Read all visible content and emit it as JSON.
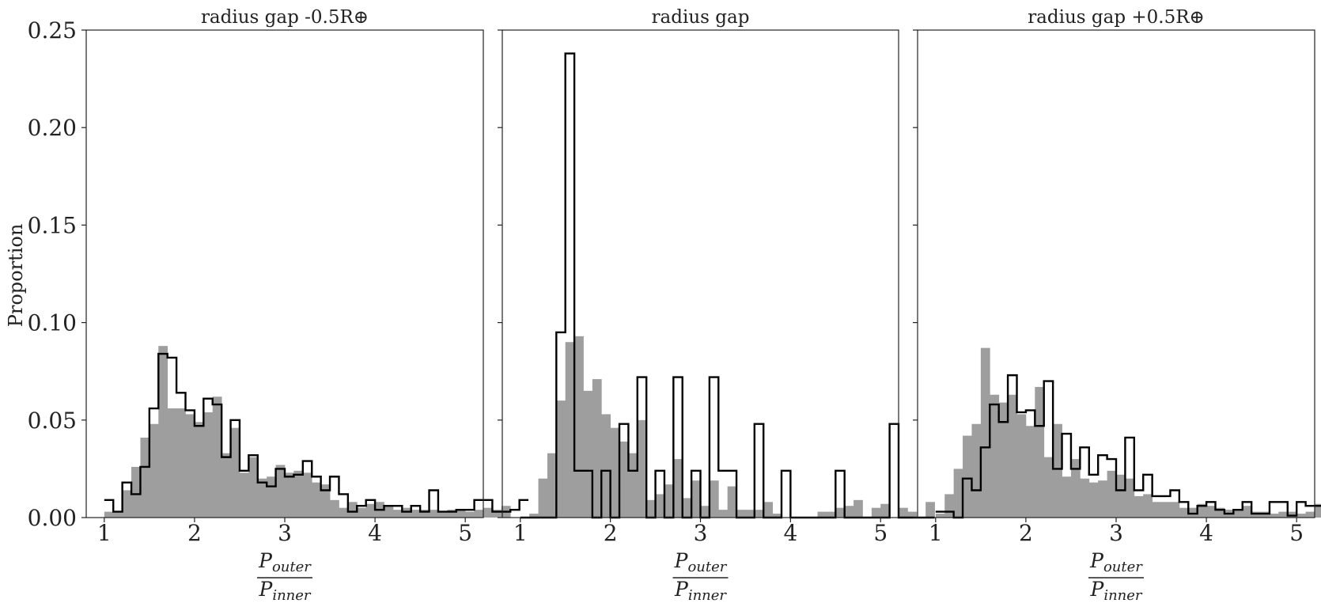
{
  "figure": {
    "ylabel": "Proportion",
    "xlabel_numerator": "P",
    "xlabel_numerator_sub": "outer",
    "xlabel_denominator": "P",
    "xlabel_denominator_sub": "inner"
  },
  "chart_data": [
    {
      "type": "histogram",
      "title": "radius gap -0.5R⊕",
      "xlim": [
        0.8,
        5.2
      ],
      "ylim": [
        0,
        0.25
      ],
      "x_ticks": [
        "1",
        "2",
        "3",
        "4",
        "5"
      ],
      "y_ticks": [
        "0.00",
        "0.05",
        "0.10",
        "0.15",
        "0.20",
        "0.25"
      ],
      "bin_start": 1.0,
      "bin_width": 0.1,
      "series": [
        {
          "style": "filled",
          "color": "#9e9e9e",
          "values": [
            0.003,
            0.003,
            0.014,
            0.026,
            0.041,
            0.048,
            0.088,
            0.056,
            0.056,
            0.053,
            0.049,
            0.054,
            0.062,
            0.033,
            0.046,
            0.023,
            0.031,
            0.02,
            0.021,
            0.027,
            0.023,
            0.024,
            0.023,
            0.018,
            0.017,
            0.009,
            0.005,
            0.008,
            0.005,
            0.007,
            0.008,
            0.006,
            0.004,
            0.005,
            0.004,
            0.004,
            0.004,
            0.003,
            0.004,
            0.004,
            0.003,
            0.004,
            0.005,
            0.004,
            0.006
          ]
        },
        {
          "style": "step",
          "color": "#000000",
          "values": [
            0.009,
            0.003,
            0.018,
            0.012,
            0.026,
            0.056,
            0.084,
            0.082,
            0.064,
            0.055,
            0.047,
            0.061,
            0.058,
            0.031,
            0.05,
            0.024,
            0.032,
            0.018,
            0.016,
            0.025,
            0.021,
            0.022,
            0.029,
            0.021,
            0.014,
            0.021,
            0.012,
            0.003,
            0.006,
            0.009,
            0.004,
            0.006,
            0.006,
            0.003,
            0.006,
            0.003,
            0.014,
            0.003,
            0.003,
            0.004,
            0.004,
            0.009,
            0.009,
            0.003,
            0.003,
            0.004,
            0.009
          ]
        }
      ]
    },
    {
      "type": "histogram",
      "title": "radius gap",
      "xlim": [
        0.8,
        5.2
      ],
      "ylim": [
        0,
        0.25
      ],
      "x_ticks": [
        "1",
        "2",
        "3",
        "4",
        "5"
      ],
      "y_ticks": [],
      "bin_start": 1.0,
      "bin_width": 0.1,
      "series": [
        {
          "style": "filled",
          "color": "#9e9e9e",
          "values": [
            0.0,
            0.002,
            0.02,
            0.033,
            0.06,
            0.09,
            0.093,
            0.065,
            0.071,
            0.053,
            0.046,
            0.039,
            0.033,
            0.05,
            0.009,
            0.012,
            0.017,
            0.03,
            0.01,
            0.019,
            0.006,
            0.019,
            0.004,
            0.016,
            0.004,
            0.004,
            0.004,
            0.008,
            0.002,
            0.0,
            0.0,
            0.0,
            0.0,
            0.003,
            0.003,
            0.005,
            0.006,
            0.009,
            0.0,
            0.005,
            0.007,
            0.0,
            0.005,
            0.003,
            0.0,
            0.008
          ]
        },
        {
          "style": "step",
          "color": "#000000",
          "values": [
            0.0,
            0.0,
            0.0,
            0.0,
            0.095,
            0.238,
            0.024,
            0.024,
            0.0,
            0.024,
            0.0,
            0.048,
            0.024,
            0.072,
            0.0,
            0.024,
            0.0,
            0.072,
            0.0,
            0.024,
            0.0,
            0.072,
            0.024,
            0.024,
            0.0,
            0.0,
            0.048,
            0.0,
            0.0,
            0.024,
            0.0,
            0.0,
            0.0,
            0.0,
            0.0,
            0.024,
            0.0,
            0.0,
            0.0,
            0.0,
            0.0,
            0.048,
            0.0,
            0.0,
            0.0,
            0.0
          ]
        }
      ]
    },
    {
      "type": "histogram",
      "title": "radius gap +0.5R⊕",
      "xlim": [
        0.8,
        5.2
      ],
      "ylim": [
        0,
        0.25
      ],
      "x_ticks": [
        "1",
        "2",
        "3",
        "4",
        "5"
      ],
      "y_ticks": [],
      "bin_start": 1.0,
      "bin_width": 0.1,
      "series": [
        {
          "style": "filled",
          "color": "#9e9e9e",
          "values": [
            0.002,
            0.012,
            0.025,
            0.042,
            0.048,
            0.087,
            0.063,
            0.059,
            0.063,
            0.053,
            0.047,
            0.067,
            0.031,
            0.048,
            0.021,
            0.03,
            0.02,
            0.018,
            0.019,
            0.024,
            0.022,
            0.02,
            0.011,
            0.012,
            0.008,
            0.008,
            0.008,
            0.005,
            0.005,
            0.007,
            0.006,
            0.005,
            0.004,
            0.004,
            0.006,
            0.003,
            0.003,
            0.002,
            0.003,
            0.003,
            0.002,
            0.003,
            0.007,
            0.004,
            0.004,
            0.003,
            0.007
          ]
        },
        {
          "style": "step",
          "color": "#000000",
          "values": [
            0.003,
            0.003,
            0.0,
            0.02,
            0.014,
            0.036,
            0.058,
            0.049,
            0.073,
            0.054,
            0.055,
            0.047,
            0.07,
            0.025,
            0.043,
            0.025,
            0.036,
            0.022,
            0.032,
            0.03,
            0.014,
            0.041,
            0.014,
            0.022,
            0.011,
            0.011,
            0.014,
            0.008,
            0.002,
            0.006,
            0.008,
            0.004,
            0.002,
            0.004,
            0.008,
            0.002,
            0.002,
            0.008,
            0.008,
            0.001,
            0.008,
            0.006,
            0.006,
            0.004,
            0.014,
            0.009,
            0.005,
            0.008,
            0.014
          ]
        }
      ]
    }
  ]
}
